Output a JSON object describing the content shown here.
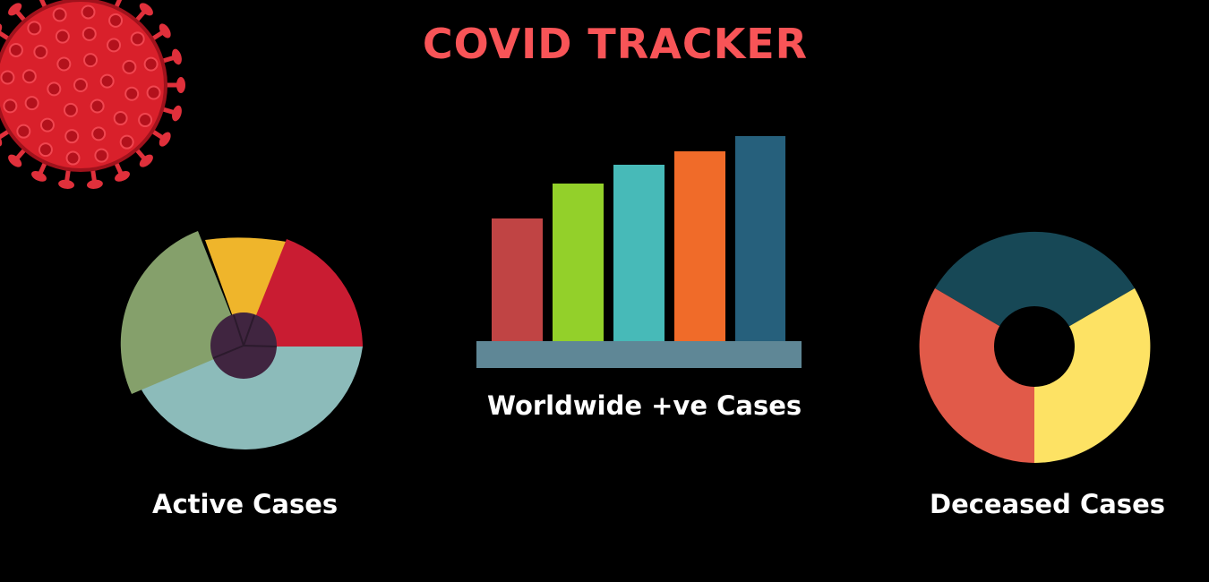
{
  "title": "COVID TRACKER",
  "labels": {
    "active": "Active Cases",
    "worldwide": "Worldwide +ve Cases",
    "deceased": "Deceased Cases"
  },
  "colors": {
    "title": "#f85457",
    "bars": [
      "#c04444",
      "#93d02a",
      "#47bab8",
      "#f06b29",
      "#26607c"
    ],
    "bar_base": "#5f8796",
    "active_segments": [
      "#8cbbba",
      "#85a06b",
      "#efb52b",
      "#c91c32"
    ],
    "active_hub": "#402540",
    "deceased_segments": [
      "#174856",
      "#fde264",
      "#e15a49"
    ]
  },
  "decoration": {
    "virus_icon": "coronavirus-icon"
  }
}
